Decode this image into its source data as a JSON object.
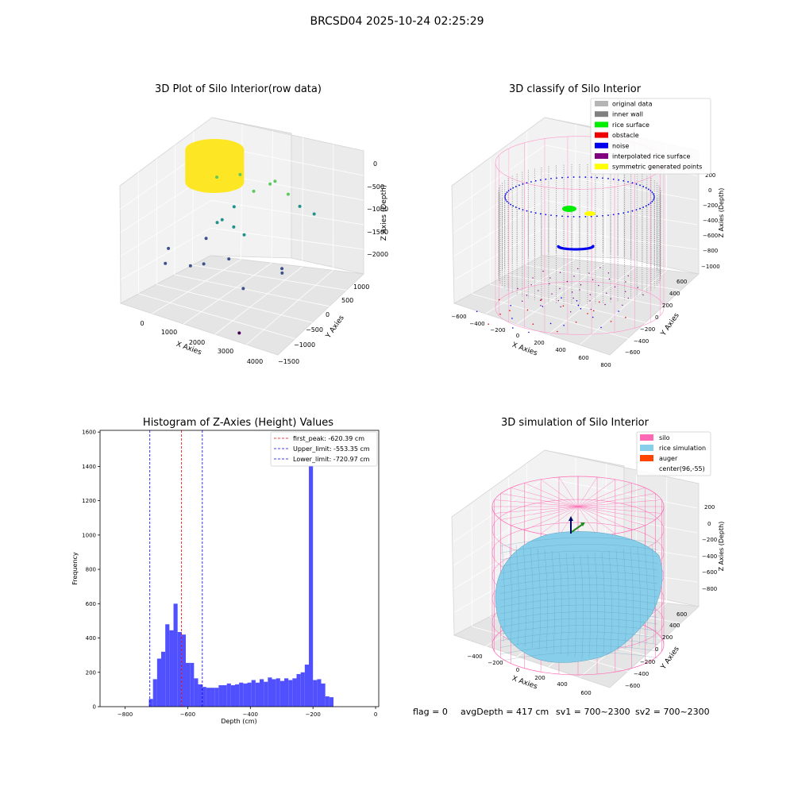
{
  "suptitle": "BRCSD04 2025-10-24 02:25:29",
  "footer": {
    "flag": "flag = 0",
    "avg_depth": "avgDepth = 417 cm",
    "sv1": "sv1 = 700~2300",
    "sv2": "sv2 = 700~2300"
  },
  "chart_data": [
    {
      "type": "scatter",
      "subtype": "3d",
      "title": "3D Plot of Silo Interior(row data)",
      "xlabel": "X Axies",
      "ylabel": "Y Axies",
      "zlabel": "Z Axies (Depth)",
      "xticks": [
        "0",
        "1000",
        "2000",
        "3000",
        "4000"
      ],
      "yticks": [
        "−1500",
        "−1000",
        "−500",
        "0",
        "500",
        "1000"
      ],
      "zticks": [
        "−2000",
        "−1500",
        "−1000",
        "−500",
        "0"
      ],
      "colormap": [
        "#440154",
        "#3b528b",
        "#21918c",
        "#5ec962",
        "#fde725"
      ],
      "points": [
        {
          "x": 2900,
          "y": -1300,
          "z": -2350
        },
        {
          "x": 2300,
          "y": -500,
          "z": -2050
        },
        {
          "x": 2900,
          "y": 100,
          "z": -1950
        },
        {
          "x": 2850,
          "y": 150,
          "z": -1900
        },
        {
          "x": 200,
          "y": -700,
          "z": -1900
        },
        {
          "x": 800,
          "y": -550,
          "z": -1900
        },
        {
          "x": 1100,
          "y": -450,
          "z": -1850
        },
        {
          "x": 1700,
          "y": -300,
          "z": -1700
        },
        {
          "x": 200,
          "y": -600,
          "z": -1650
        },
        {
          "x": 900,
          "y": -150,
          "z": -1550
        },
        {
          "x": 1350,
          "y": 250,
          "z": -1450
        },
        {
          "x": 1700,
          "y": 200,
          "z": -1500
        },
        {
          "x": 1000,
          "y": 100,
          "z": -1350
        },
        {
          "x": 1100,
          "y": 150,
          "z": -1300
        },
        {
          "x": 2700,
          "y": 900,
          "z": -1100
        },
        {
          "x": 3300,
          "y": 700,
          "z": -1000
        },
        {
          "x": 2450,
          "y": 800,
          "z": -850
        },
        {
          "x": 1450,
          "y": 150,
          "z": -950
        },
        {
          "x": 1800,
          "y": 400,
          "z": -700
        },
        {
          "x": 2100,
          "y": 600,
          "z": -600
        },
        {
          "x": 2200,
          "y": 650,
          "z": -550
        },
        {
          "x": 900,
          "y": 200,
          "z": -500
        },
        {
          "x": 1400,
          "y": 400,
          "z": -450
        }
      ],
      "cluster": {
        "x": 700,
        "y": 300,
        "z_top": -50,
        "z_bottom": -700
      }
    },
    {
      "type": "scatter",
      "subtype": "3d",
      "title": "3D classify of Silo Interior",
      "xlabel": "X Axies",
      "ylabel": "Y Axies",
      "zlabel": "Z Axies (Depth)",
      "xticks": [
        "−600",
        "−400",
        "−200",
        "0",
        "200",
        "400",
        "600",
        "800"
      ],
      "yticks": [
        "−600",
        "−400",
        "−200",
        "0",
        "200",
        "400",
        "600"
      ],
      "zticks": [
        "−1000",
        "−800",
        "−600",
        "−400",
        "−200",
        "0",
        "200"
      ],
      "legend": [
        {
          "label": "original data",
          "color": "#b5b5b5"
        },
        {
          "label": "inner wall",
          "color": "#808080"
        },
        {
          "label": "rice surface",
          "color": "#00ee00"
        },
        {
          "label": "obstacle",
          "color": "#ee0000"
        },
        {
          "label": "noise",
          "color": "#0000ee"
        },
        {
          "label": "interpolated rice surface",
          "color": "#800080"
        },
        {
          "label": "symmetric generated points",
          "color": "#ffff00"
        }
      ],
      "legend_loc": "upper right"
    },
    {
      "type": "bar",
      "subtype": "histogram",
      "title": "Histogram of Z-Axies (Height) Values",
      "xlabel": "Depth (cm)",
      "ylabel": "Frequency",
      "xlim": [
        -880,
        10
      ],
      "ylim": [
        0,
        1610
      ],
      "xticks": [
        -800,
        -600,
        -400,
        -200,
        0
      ],
      "xtick_labels": [
        "−800",
        "−600",
        "−400",
        "−200",
        "0"
      ],
      "yticks": [
        0,
        200,
        400,
        600,
        800,
        1000,
        1200,
        1400,
        1600
      ],
      "bin_width": 13.1,
      "bin_start": -724,
      "values": [
        45,
        160,
        280,
        320,
        480,
        445,
        600,
        435,
        420,
        255,
        255,
        165,
        130,
        115,
        110,
        110,
        110,
        125,
        125,
        135,
        125,
        130,
        140,
        135,
        140,
        155,
        140,
        160,
        145,
        170,
        160,
        165,
        150,
        165,
        155,
        165,
        190,
        200,
        245,
        1540,
        155,
        160,
        135,
        60,
        55
      ],
      "bar_color": "#5050ff",
      "lines": [
        {
          "label": "first_peak: -620.39 cm",
          "x": -620.39,
          "color": "#ee0000"
        },
        {
          "label": "Upper_limit: -553.35 cm",
          "x": -553.35,
          "color": "#0000ee"
        },
        {
          "label": "Lower_limit: -720.97 cm",
          "x": -720.97,
          "color": "#0000ee"
        }
      ],
      "legend_loc": "upper right"
    },
    {
      "type": "area",
      "subtype": "3d-surface",
      "title": "3D simulation of Silo Interior",
      "xlabel": "X Axies",
      "ylabel": "Y Axies",
      "zlabel": "Z Axies (Depth)",
      "xticks": [
        "−400",
        "−200",
        "0",
        "200",
        "400",
        "600"
      ],
      "yticks": [
        "−600",
        "−400",
        "−200",
        "0",
        "200",
        "400",
        "600"
      ],
      "zticks": [
        "−800",
        "−600",
        "−400",
        "−200",
        "0",
        "200"
      ],
      "legend": [
        {
          "label": "silo",
          "color": "#ff69b4"
        },
        {
          "label": "rice simulation",
          "color": "#87ceeb"
        },
        {
          "label": "auger",
          "color": "#ff4500"
        },
        {
          "label": "center(96,-55)",
          "color": ""
        }
      ],
      "legend_loc": "upper right"
    }
  ]
}
